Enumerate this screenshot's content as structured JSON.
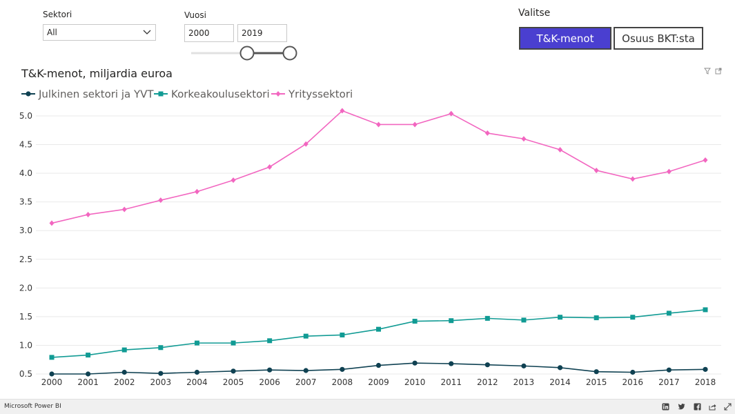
{
  "filters": {
    "sector_label": "Sektori",
    "sector_value": "All",
    "year_label": "Vuosi",
    "year_from": "2000",
    "year_to": "2019"
  },
  "selector": {
    "label": "Valitse",
    "options": [
      "T&K-menot",
      "Osuus BKT:sta"
    ],
    "active": "T&K-menot"
  },
  "footer": {
    "brand": "Microsoft Power BI"
  },
  "colors": {
    "accent": "#4a3fd0",
    "public": "#0f4152",
    "university": "#119b94",
    "business": "#f266c0"
  },
  "chart_data": {
    "type": "line",
    "title": "T&K-menot, miljardia euroa",
    "categories": [
      "2000",
      "2001",
      "2002",
      "2003",
      "2004",
      "2005",
      "2006",
      "2007",
      "2008",
      "2009",
      "2010",
      "2011",
      "2012",
      "2013",
      "2014",
      "2015",
      "2016",
      "2017",
      "2018"
    ],
    "yticks": [
      "0.5",
      "1.0",
      "1.5",
      "2.0",
      "2.5",
      "3.0",
      "3.5",
      "4.0",
      "4.5",
      "5.0"
    ],
    "ylim": [
      0.5,
      5.0
    ],
    "grid": true,
    "legend_position": "top-left",
    "series": [
      {
        "name": "Julkinen sektori ja YVT",
        "marker": "circle",
        "color": "#0f4152",
        "values": [
          0.5,
          0.5,
          0.53,
          0.51,
          0.53,
          0.55,
          0.57,
          0.56,
          0.58,
          0.65,
          0.69,
          0.68,
          0.66,
          0.64,
          0.61,
          0.54,
          0.53,
          0.57,
          0.58
        ]
      },
      {
        "name": "Korkeakoulusektori",
        "marker": "square",
        "color": "#119b94",
        "values": [
          0.79,
          0.83,
          0.92,
          0.96,
          1.04,
          1.04,
          1.08,
          1.16,
          1.18,
          1.28,
          1.42,
          1.43,
          1.47,
          1.44,
          1.49,
          1.48,
          1.49,
          1.56,
          1.62
        ]
      },
      {
        "name": "Yrityssektori",
        "marker": "diamond",
        "color": "#f266c0",
        "values": [
          3.13,
          3.28,
          3.37,
          3.53,
          3.68,
          3.88,
          4.11,
          4.51,
          5.09,
          4.85,
          4.85,
          5.04,
          4.7,
          4.6,
          4.41,
          4.05,
          3.9,
          4.03,
          4.23
        ]
      }
    ]
  }
}
